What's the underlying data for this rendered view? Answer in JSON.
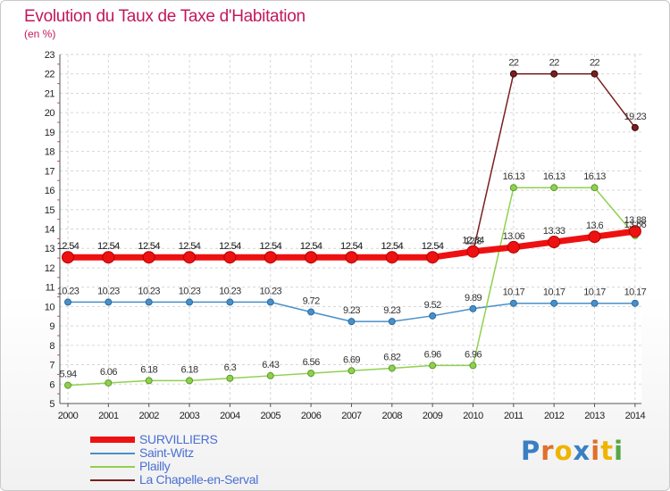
{
  "header": {
    "title": "Evolution du Taux de Taxe d'Habitation",
    "unit": "(en %)"
  },
  "logo": {
    "text": "Proxiti",
    "letter_colors": [
      "#3a7fc4",
      "#e0702a",
      "#f0b400",
      "#3a7fc4",
      "#e0702a",
      "#f0b400",
      "#55a845"
    ]
  },
  "chart_data": {
    "type": "line",
    "title": "Evolution du Taux de Taxe d'Habitation",
    "ylabel": "(en %)",
    "xlabel": "",
    "x": [
      "2000",
      "2001",
      "2002",
      "2003",
      "2004",
      "2005",
      "2006",
      "2007",
      "2008",
      "2009",
      "2010",
      "2011",
      "2012",
      "2013",
      "2014"
    ],
    "ylim": [
      5,
      23
    ],
    "yticks": [
      5,
      6,
      7,
      8,
      9,
      10,
      11,
      12,
      13,
      14,
      15,
      16,
      17,
      18,
      19,
      20,
      21,
      22,
      23
    ],
    "grid": true,
    "legend_position": "bottom-left",
    "series": [
      {
        "name": "SURVILLIERS",
        "color": "#ee1111",
        "values": [
          12.54,
          12.54,
          12.54,
          12.54,
          12.54,
          12.54,
          12.54,
          12.54,
          12.54,
          12.54,
          12.84,
          13.06,
          13.33,
          13.6,
          13.88
        ],
        "labels": [
          "12.54",
          "12.54",
          "12.54",
          "12.54",
          "12.54",
          "12.54",
          "12.54",
          "12.54",
          "12.54",
          "12.54",
          "12.84",
          "13.06",
          "13.33",
          "13.6",
          "13.88"
        ]
      },
      {
        "name": "Saint-Witz",
        "color": "#4a90c8",
        "values": [
          10.23,
          10.23,
          10.23,
          10.23,
          10.23,
          10.23,
          9.72,
          9.23,
          9.23,
          9.52,
          9.89,
          10.17,
          10.17,
          10.17,
          10.17
        ],
        "labels": [
          "10.23",
          "10.23",
          "10.23",
          "10.23",
          "10.23",
          "10.23",
          "9.72",
          "9.23",
          "9.23",
          "9.52",
          "9.89",
          "10.17",
          "10.17",
          "10.17",
          "10.17"
        ]
      },
      {
        "name": "Plailly",
        "color": "#8fd14f",
        "values": [
          5.94,
          6.06,
          6.18,
          6.18,
          6.3,
          6.43,
          6.56,
          6.69,
          6.82,
          6.96,
          6.96,
          16.13,
          16.13,
          16.13,
          13.66
        ],
        "labels": [
          "5.94",
          "6.06",
          "6.18",
          "6.18",
          "6.3",
          "6.43",
          "6.56",
          "6.69",
          "6.82",
          "6.96",
          "6.96",
          "16.13",
          "16.13",
          "16.13",
          "13.66"
        ]
      },
      {
        "name": "La Chapelle-en-Serval",
        "color": "#7a1f1f",
        "values": [
          12.54,
          12.54,
          12.54,
          12.54,
          12.54,
          12.54,
          12.54,
          12.54,
          12.54,
          12.54,
          12.8,
          22,
          22,
          22,
          19.23
        ],
        "labels": [
          "12.54",
          "12.54",
          "12.54",
          "12.54",
          "12.54",
          "12.54",
          "12.54",
          "12.54",
          "12.54",
          "12.54",
          "12.8",
          "22",
          "22",
          "22",
          "19.23"
        ]
      }
    ]
  }
}
